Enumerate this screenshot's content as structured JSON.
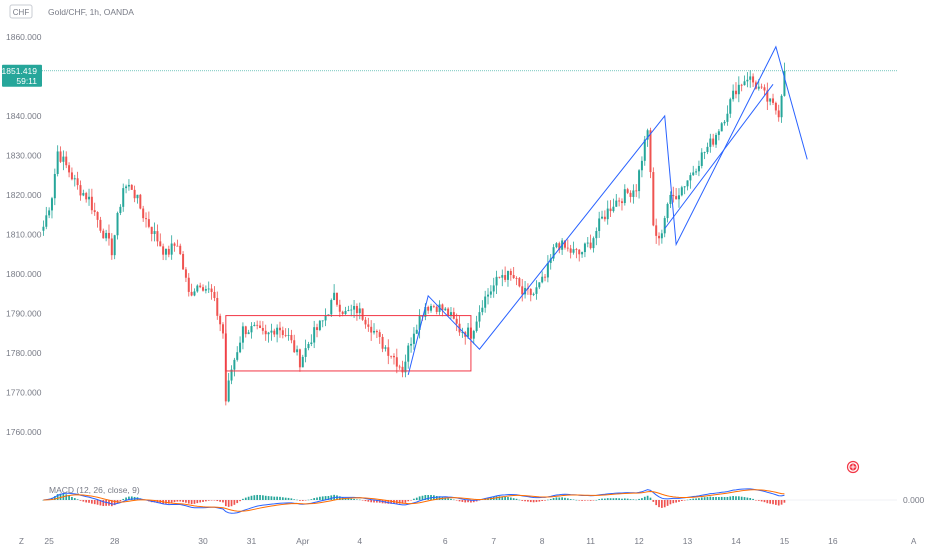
{
  "header": {
    "symbol_badge": "CHF",
    "title": "Gold/CHF, 1h, OANDA"
  },
  "price_tag": {
    "price": "1851.419",
    "countdown": "59:11",
    "color": "#26a69a"
  },
  "indicator": {
    "legend": "MACD (12, 26, close, 9)",
    "zero_label": "0.000"
  },
  "corner_labels": {
    "left": "Z",
    "right": "A"
  },
  "colors": {
    "up": "#26a69a",
    "down": "#ef5350",
    "drawing": "#2962ff",
    "box": "#f23645",
    "macd": "#2962ff",
    "signal": "#ff6d00"
  },
  "chart_data": {
    "type": "candlestick",
    "title": "Gold/CHF, 1h, OANDA",
    "ylim": [
      1755,
      1863
    ],
    "y_ticks": [
      "1860.000",
      "1850.000",
      "1840.000",
      "1830.000",
      "1820.000",
      "1810.000",
      "1800.000",
      "1790.000",
      "1780.000",
      "1770.000",
      "1760.000"
    ],
    "y_tick_values": [
      1860,
      1850,
      1840,
      1830,
      1820,
      1810,
      1800,
      1790,
      1780,
      1770,
      1760
    ],
    "x_ticks": [
      "25",
      "28",
      "30",
      "31",
      "Apr",
      "4",
      "6",
      "7",
      "8",
      "11",
      "12",
      "13",
      "14",
      "15",
      "16"
    ],
    "last_price": 1851.419,
    "close_path": [
      [
        0,
        1812
      ],
      [
        3,
        1820
      ],
      [
        5,
        1831
      ],
      [
        9,
        1826
      ],
      [
        12,
        1822
      ],
      [
        16,
        1819
      ],
      [
        20,
        1812
      ],
      [
        24,
        1806
      ],
      [
        28,
        1822
      ],
      [
        31,
        1822
      ],
      [
        35,
        1815
      ],
      [
        39,
        1810
      ],
      [
        43,
        1805
      ],
      [
        47,
        1808
      ],
      [
        51,
        1795
      ],
      [
        55,
        1798
      ],
      [
        59,
        1795
      ],
      [
        63,
        1785
      ],
      [
        64,
        1768
      ],
      [
        66,
        1776
      ],
      [
        70,
        1786
      ],
      [
        74,
        1786
      ],
      [
        78,
        1784
      ],
      [
        82,
        1787
      ],
      [
        86,
        1784
      ],
      [
        90,
        1778
      ],
      [
        94,
        1784
      ],
      [
        98,
        1788
      ],
      [
        102,
        1794
      ],
      [
        106,
        1790
      ],
      [
        110,
        1791
      ],
      [
        114,
        1788
      ],
      [
        118,
        1783
      ],
      [
        122,
        1780
      ],
      [
        126,
        1776
      ],
      [
        130,
        1786
      ],
      [
        134,
        1792
      ],
      [
        138,
        1792
      ],
      [
        142,
        1790
      ],
      [
        146,
        1786
      ],
      [
        150,
        1785
      ],
      [
        154,
        1793
      ],
      [
        158,
        1797
      ],
      [
        161,
        1800
      ],
      [
        165,
        1799
      ],
      [
        168,
        1795
      ],
      [
        172,
        1795
      ],
      [
        176,
        1799
      ],
      [
        180,
        1808
      ],
      [
        184,
        1806
      ],
      [
        188,
        1805
      ],
      [
        192,
        1808
      ],
      [
        196,
        1814
      ],
      [
        200,
        1818
      ],
      [
        204,
        1820
      ],
      [
        208,
        1822
      ],
      [
        212,
        1837
      ],
      [
        214,
        1812
      ],
      [
        216,
        1808
      ],
      [
        219,
        1818
      ],
      [
        223,
        1821
      ],
      [
        227,
        1825
      ],
      [
        231,
        1830
      ],
      [
        235,
        1834
      ],
      [
        239,
        1840
      ],
      [
        243,
        1847
      ],
      [
        247,
        1850
      ],
      [
        251,
        1847
      ],
      [
        255,
        1843
      ],
      [
        258,
        1841
      ],
      [
        260,
        1851
      ]
    ],
    "drawings": {
      "rectangle": {
        "from_bar": 64,
        "to_bar": 150,
        "price_high": 1789.5,
        "price_low": 1775.5
      },
      "polyline": [
        [
          128,
          1774.5
        ],
        [
          135,
          1794.5
        ],
        [
          153,
          1781
        ],
        [
          218,
          1840
        ],
        [
          222,
          1807.5
        ],
        [
          257,
          1857.5
        ],
        [
          268,
          1829
        ]
      ],
      "parallel_line": [
        [
          218,
          1811.5
        ],
        [
          256,
          1848
        ]
      ],
      "horizontal_line": {
        "price": 1851.419,
        "from_bar": 60
      }
    },
    "indicator": {
      "name": "MACD (12, 26, close, 9)",
      "zero": 0.0
    }
  }
}
